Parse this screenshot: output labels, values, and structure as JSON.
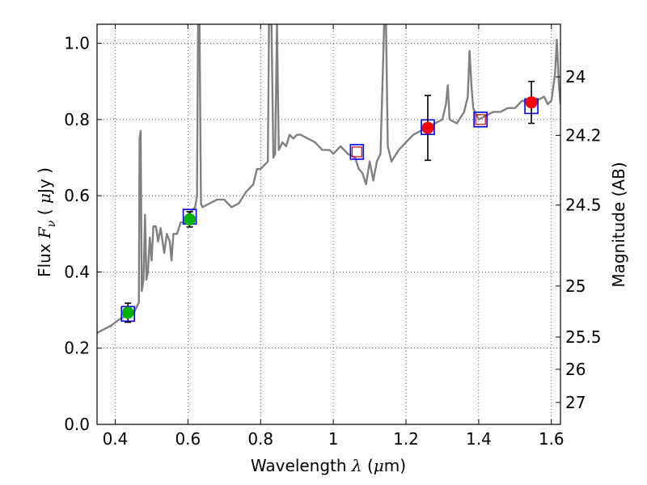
{
  "chart_data": {
    "type": "line",
    "xlabel": {
      "prefix": "Wavelength  ",
      "symbol": "λ",
      "units_open": " (",
      "units_mu": "μ",
      "units_close": "m)"
    },
    "ylabel": {
      "prefix": "Flux  ",
      "symbol": "F",
      "subscript": "ν",
      "units_open": "  ( ",
      "units_mu": "μ",
      "units_close": "Jy )"
    },
    "y2label": "Magnitude (AB)",
    "xlim": [
      0.35,
      1.625
    ],
    "ylim": [
      0.0,
      1.05
    ],
    "grid": true,
    "x_ticks": [
      {
        "v": 0.4,
        "label": "0.4"
      },
      {
        "v": 0.6,
        "label": "0.6"
      },
      {
        "v": 0.8,
        "label": "0.8"
      },
      {
        "v": 1.0,
        "label": "1"
      },
      {
        "v": 1.2,
        "label": "1.2"
      },
      {
        "v": 1.4,
        "label": "1.4"
      },
      {
        "v": 1.6,
        "label": "1.6"
      }
    ],
    "y_ticks": [
      {
        "v": 0.0,
        "label": "0.0"
      },
      {
        "v": 0.2,
        "label": "0.2"
      },
      {
        "v": 0.4,
        "label": "0.4"
      },
      {
        "v": 0.6,
        "label": "0.6"
      },
      {
        "v": 0.8,
        "label": "0.8"
      },
      {
        "v": 1.0,
        "label": "1.0"
      }
    ],
    "y2_ticks": [
      {
        "mag": 24,
        "label": "24"
      },
      {
        "mag": 24.2,
        "label": "24.2"
      },
      {
        "mag": 24.5,
        "label": "24.5"
      },
      {
        "mag": 25,
        "label": "25"
      },
      {
        "mag": 25.5,
        "label": "25.5"
      },
      {
        "mag": 26,
        "label": "26"
      },
      {
        "mag": 27,
        "label": "27"
      }
    ],
    "series": [
      {
        "kind": "model_sed",
        "color": "#808080",
        "points": [
          [
            0.35,
            0.24
          ],
          [
            0.37,
            0.25
          ],
          [
            0.39,
            0.26
          ],
          [
            0.41,
            0.275
          ],
          [
            0.43,
            0.285
          ],
          [
            0.45,
            0.29
          ],
          [
            0.465,
            0.32
          ],
          [
            0.467,
            0.75
          ],
          [
            0.47,
            0.77
          ],
          [
            0.473,
            0.35
          ],
          [
            0.478,
            0.38
          ],
          [
            0.482,
            0.55
          ],
          [
            0.486,
            0.38
          ],
          [
            0.49,
            0.4
          ],
          [
            0.495,
            0.49
          ],
          [
            0.5,
            0.43
          ],
          [
            0.505,
            0.52
          ],
          [
            0.512,
            0.52
          ],
          [
            0.518,
            0.48
          ],
          [
            0.525,
            0.515
          ],
          [
            0.535,
            0.45
          ],
          [
            0.542,
            0.5
          ],
          [
            0.55,
            0.48
          ],
          [
            0.555,
            0.43
          ],
          [
            0.56,
            0.5
          ],
          [
            0.57,
            0.5
          ],
          [
            0.58,
            0.53
          ],
          [
            0.59,
            0.53
          ],
          [
            0.6,
            0.55
          ],
          [
            0.61,
            0.56
          ],
          [
            0.62,
            0.57
          ],
          [
            0.625,
            0.6
          ],
          [
            0.628,
            1.05
          ],
          [
            0.632,
            1.05
          ],
          [
            0.636,
            0.58
          ],
          [
            0.64,
            0.57
          ],
          [
            0.66,
            0.58
          ],
          [
            0.68,
            0.59
          ],
          [
            0.7,
            0.59
          ],
          [
            0.72,
            0.57
          ],
          [
            0.74,
            0.58
          ],
          [
            0.76,
            0.61
          ],
          [
            0.78,
            0.63
          ],
          [
            0.79,
            0.67
          ],
          [
            0.8,
            0.67
          ],
          [
            0.81,
            0.68
          ],
          [
            0.82,
            0.69
          ],
          [
            0.823,
            1.05
          ],
          [
            0.83,
            1.05
          ],
          [
            0.835,
            0.7
          ],
          [
            0.84,
            0.71
          ],
          [
            0.845,
            1.05
          ],
          [
            0.85,
            0.72
          ],
          [
            0.86,
            0.74
          ],
          [
            0.87,
            0.73
          ],
          [
            0.88,
            0.76
          ],
          [
            0.89,
            0.75
          ],
          [
            0.9,
            0.76
          ],
          [
            0.91,
            0.76
          ],
          [
            0.93,
            0.75
          ],
          [
            0.95,
            0.74
          ],
          [
            0.97,
            0.72
          ],
          [
            0.99,
            0.72
          ],
          [
            1.0,
            0.71
          ],
          [
            1.02,
            0.73
          ],
          [
            1.04,
            0.71
          ],
          [
            1.06,
            0.7
          ],
          [
            1.07,
            0.67
          ],
          [
            1.08,
            0.66
          ],
          [
            1.09,
            0.63
          ],
          [
            1.1,
            0.69
          ],
          [
            1.11,
            0.64
          ],
          [
            1.12,
            0.69
          ],
          [
            1.13,
            0.71
          ],
          [
            1.14,
            1.05
          ],
          [
            1.145,
            1.05
          ],
          [
            1.15,
            0.73
          ],
          [
            1.16,
            0.69
          ],
          [
            1.18,
            0.72
          ],
          [
            1.2,
            0.74
          ],
          [
            1.22,
            0.76
          ],
          [
            1.24,
            0.77
          ],
          [
            1.26,
            0.78
          ],
          [
            1.28,
            0.79
          ],
          [
            1.3,
            0.8
          ],
          [
            1.31,
            0.84
          ],
          [
            1.315,
            0.89
          ],
          [
            1.32,
            0.8
          ],
          [
            1.34,
            0.79
          ],
          [
            1.36,
            0.82
          ],
          [
            1.37,
            0.86
          ],
          [
            1.375,
            0.98
          ],
          [
            1.38,
            0.89
          ],
          [
            1.385,
            0.83
          ],
          [
            1.4,
            0.8
          ],
          [
            1.42,
            0.81
          ],
          [
            1.44,
            0.82
          ],
          [
            1.46,
            0.82
          ],
          [
            1.48,
            0.83
          ],
          [
            1.5,
            0.83
          ],
          [
            1.52,
            0.85
          ],
          [
            1.54,
            0.84
          ],
          [
            1.56,
            0.85
          ],
          [
            1.58,
            0.86
          ],
          [
            1.59,
            0.84
          ],
          [
            1.6,
            0.85
          ],
          [
            1.61,
            0.92
          ],
          [
            1.615,
            1.01
          ],
          [
            1.62,
            0.9
          ],
          [
            1.625,
            0.84
          ]
        ]
      },
      {
        "kind": "model_photometry",
        "marker": "open-square",
        "color": "#0000ff",
        "points": [
          [
            0.435,
            0.29
          ],
          [
            0.605,
            0.545
          ],
          [
            1.065,
            0.715
          ],
          [
            1.26,
            0.78
          ],
          [
            1.405,
            0.8
          ],
          [
            1.545,
            0.835
          ]
        ]
      },
      {
        "kind": "predicted_photometry",
        "marker": "small-open-square",
        "color": "#cc0000",
        "points": [
          [
            1.065,
            0.715
          ],
          [
            1.405,
            0.8
          ]
        ]
      },
      {
        "kind": "observed_photometry",
        "marker": "circle",
        "points": [
          {
            "x": 0.435,
            "y": 0.293,
            "err": 0.025,
            "color": "#00b300"
          },
          {
            "x": 0.605,
            "y": 0.538,
            "err": 0.02,
            "color": "#00b300"
          },
          {
            "x": 1.26,
            "y": 0.778,
            "err": 0.085,
            "color": "#ff0000"
          },
          {
            "x": 1.545,
            "y": 0.845,
            "err": 0.055,
            "color": "#ff0000"
          }
        ]
      }
    ]
  }
}
